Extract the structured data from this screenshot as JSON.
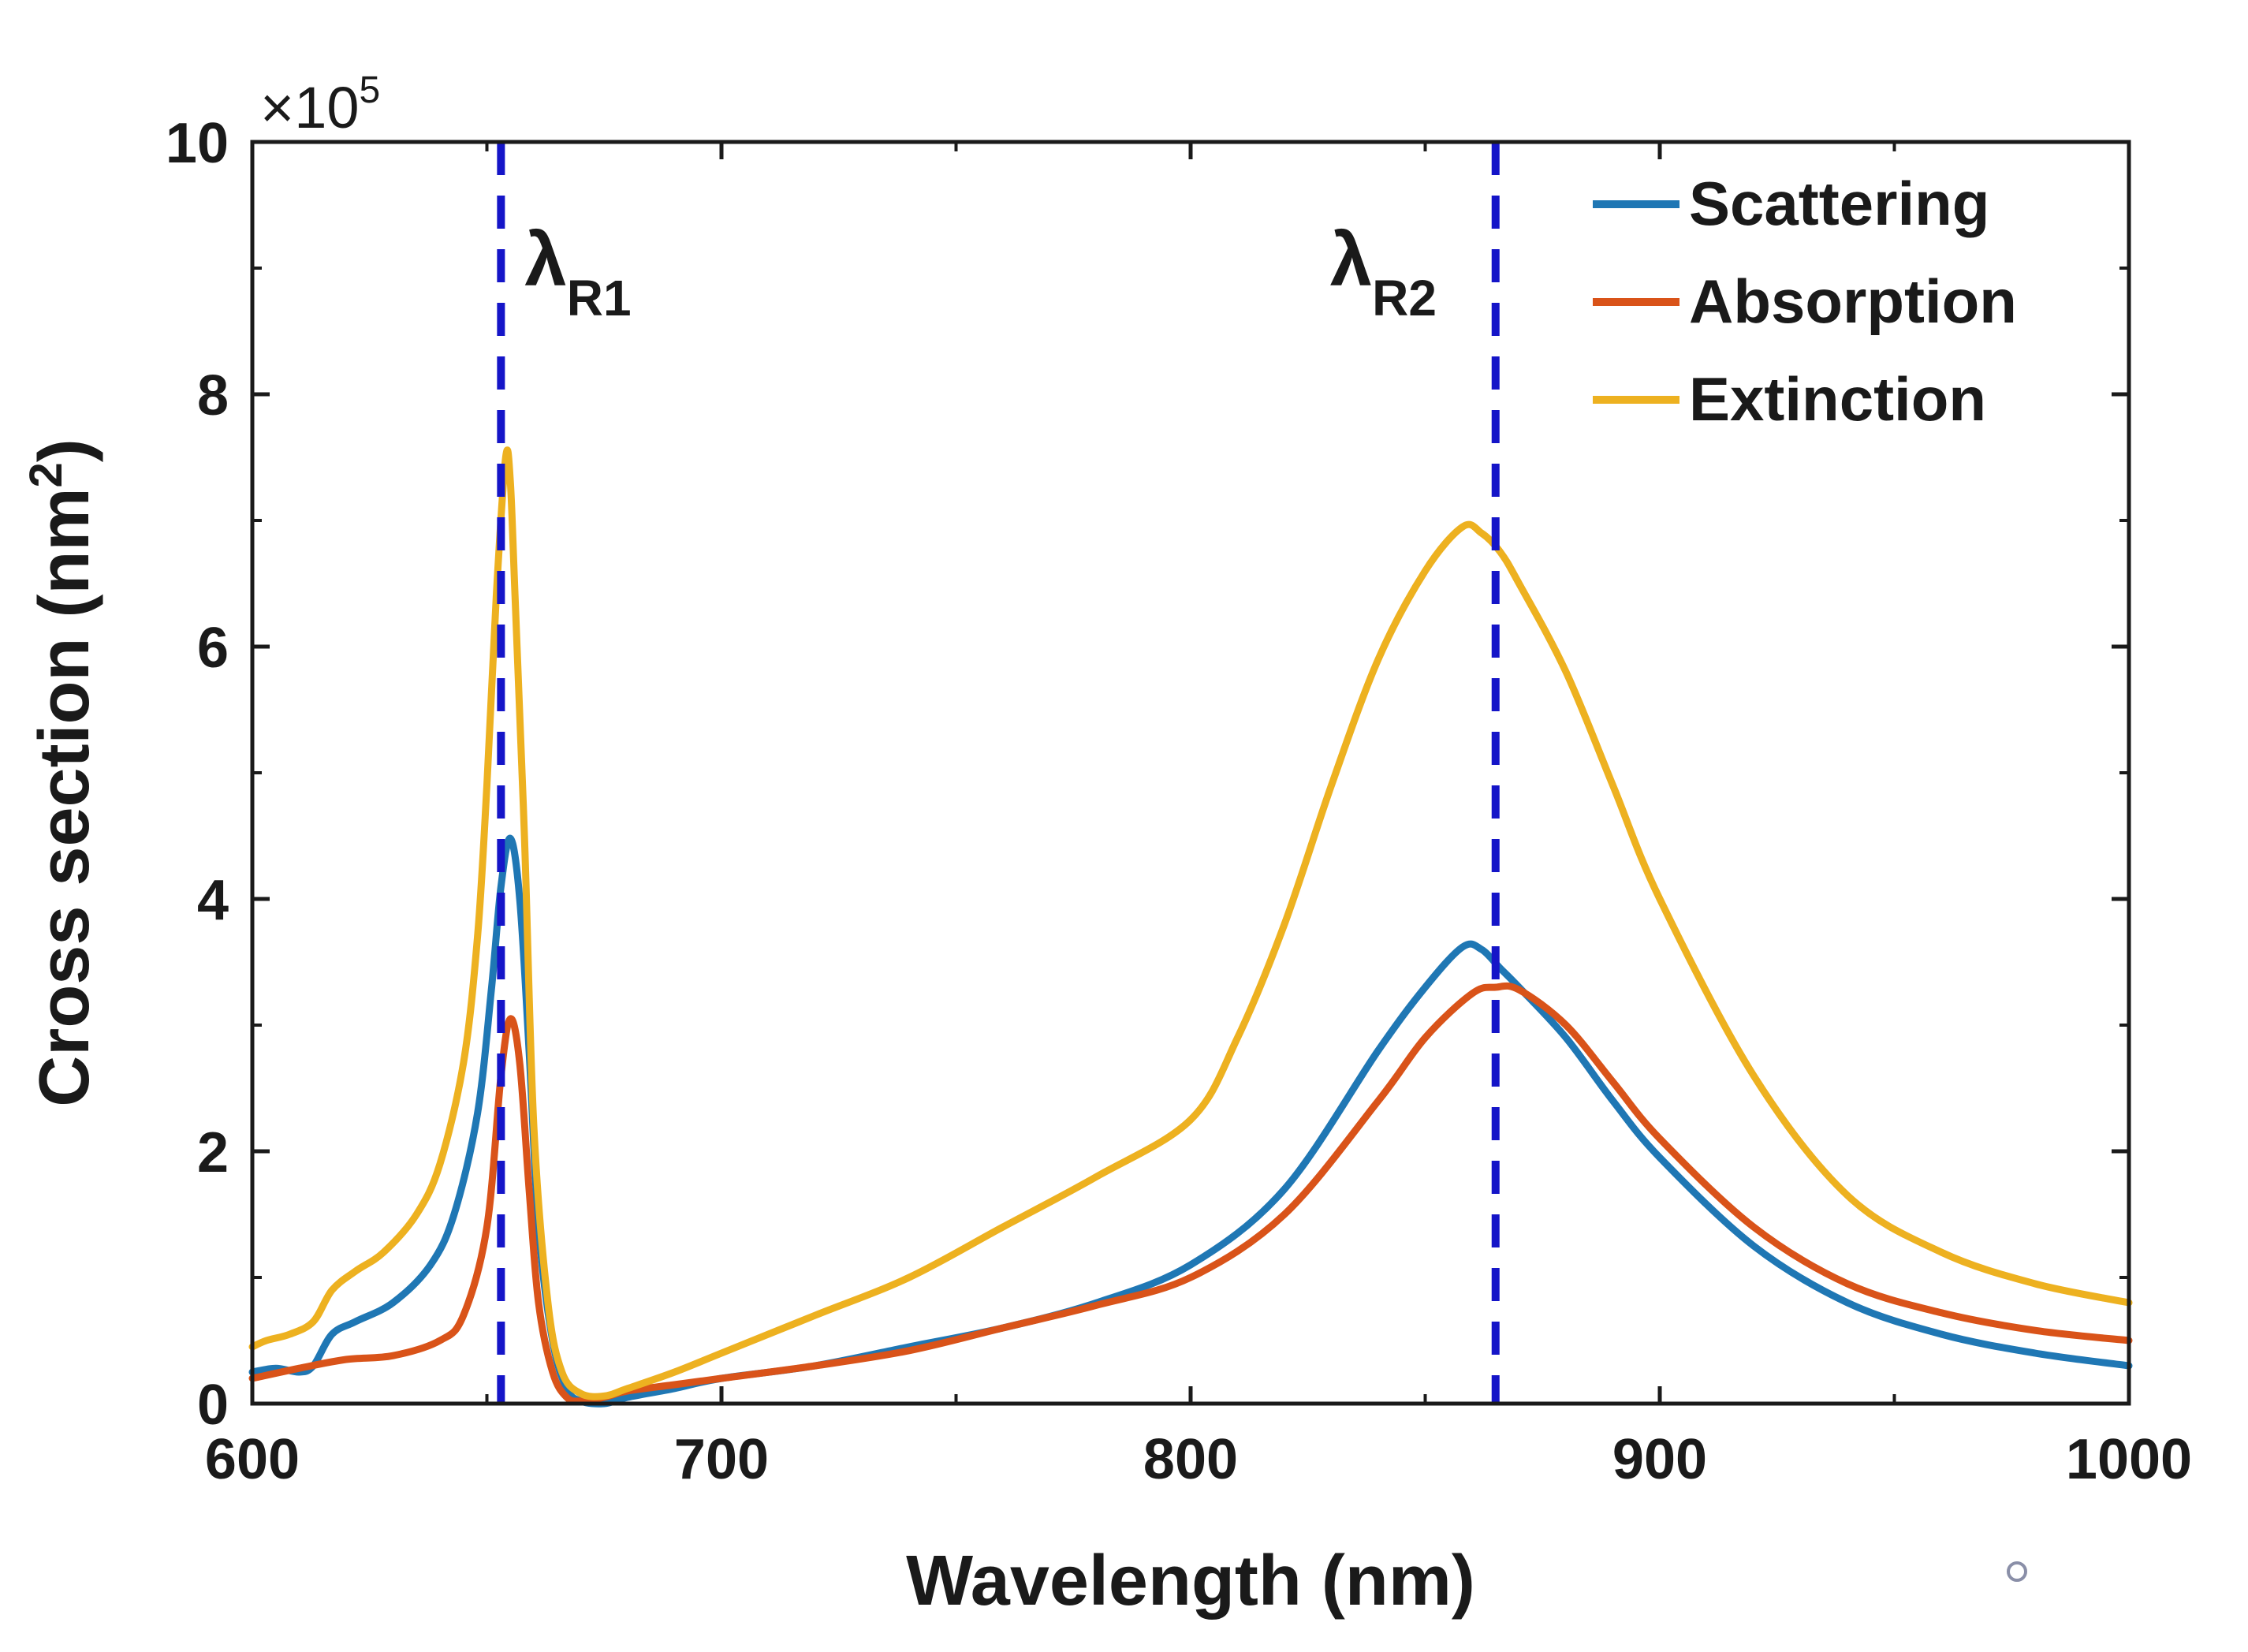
{
  "chart_data": {
    "type": "line",
    "xlabel": "Wavelength (nm)",
    "ylabel_main": "Cross section (nm",
    "ylabel_sup": "2",
    "ylabel_close": ")",
    "exponent_prefix": "×10",
    "exponent_power": "5",
    "xlim": [
      600,
      1000
    ],
    "ylim": [
      0,
      10
    ],
    "y_scale_factor": 100000,
    "x_ticks": [
      600,
      700,
      800,
      900,
      1000
    ],
    "y_ticks": [
      0,
      2,
      4,
      6,
      8,
      10
    ],
    "x_tick_labels": [
      "600",
      "700",
      "800",
      "900",
      "1000"
    ],
    "y_tick_labels": [
      "0",
      "2",
      "4",
      "6",
      "8",
      "10"
    ],
    "grid": false,
    "legend_position": "top-right",
    "markers": [
      {
        "symbol": "λ",
        "subscript": "R1",
        "x": 653,
        "color": "#1515c8"
      },
      {
        "symbol": "λ",
        "subscript": "R2",
        "x": 865,
        "color": "#1515c8"
      }
    ],
    "series": [
      {
        "name": "Scattering",
        "color": "#1f77b4",
        "x": [
          600,
          605,
          610,
          613,
          617,
          622,
          630,
          638,
          643,
          648,
          651,
          653,
          655,
          657,
          659,
          661,
          664,
          667,
          670,
          675,
          680,
          690,
          700,
          720,
          740,
          760,
          780,
          800,
          820,
          840,
          850,
          858,
          862,
          866,
          870,
          880,
          890,
          900,
          920,
          940,
          960,
          980,
          1000
        ],
        "y": [
          0.25,
          0.28,
          0.25,
          0.3,
          0.55,
          0.65,
          0.8,
          1.1,
          1.5,
          2.3,
          3.3,
          4.1,
          4.48,
          4.0,
          2.8,
          1.4,
          0.5,
          0.12,
          0.02,
          0.0,
          0.05,
          0.12,
          0.2,
          0.3,
          0.45,
          0.6,
          0.8,
          1.1,
          1.7,
          2.8,
          3.3,
          3.62,
          3.6,
          3.45,
          3.3,
          2.9,
          2.4,
          1.95,
          1.25,
          0.8,
          0.55,
          0.4,
          0.3
        ]
      },
      {
        "name": "Absorption",
        "color": "#d95319",
        "x": [
          600,
          610,
          620,
          630,
          640,
          645,
          650,
          653,
          655,
          657,
          659,
          661,
          664,
          667,
          670,
          675,
          680,
          690,
          700,
          720,
          740,
          760,
          780,
          800,
          820,
          840,
          850,
          860,
          865,
          870,
          880,
          890,
          900,
          920,
          940,
          960,
          980,
          1000
        ],
        "y": [
          0.2,
          0.28,
          0.35,
          0.38,
          0.5,
          0.7,
          1.4,
          2.6,
          3.05,
          2.7,
          1.7,
          0.8,
          0.25,
          0.05,
          0.02,
          0.05,
          0.1,
          0.15,
          0.2,
          0.3,
          0.42,
          0.6,
          0.78,
          1.0,
          1.5,
          2.4,
          2.9,
          3.25,
          3.3,
          3.28,
          3.0,
          2.55,
          2.1,
          1.4,
          0.95,
          0.72,
          0.58,
          0.5
        ]
      },
      {
        "name": "Extinction",
        "color": "#edb120",
        "x": [
          600,
          603,
          608,
          613,
          617,
          622,
          628,
          635,
          640,
          645,
          648,
          650,
          652,
          654,
          655,
          656,
          658,
          660,
          663,
          666,
          670,
          675,
          680,
          690,
          700,
          720,
          740,
          760,
          780,
          800,
          810,
          820,
          830,
          840,
          850,
          858,
          862,
          866,
          870,
          880,
          890,
          900,
          920,
          940,
          960,
          980,
          1000
        ],
        "y": [
          0.45,
          0.5,
          0.55,
          0.65,
          0.9,
          1.05,
          1.2,
          1.5,
          1.9,
          2.7,
          3.7,
          4.9,
          6.4,
          7.5,
          7.3,
          6.4,
          4.5,
          2.2,
          0.8,
          0.25,
          0.08,
          0.06,
          0.12,
          0.25,
          0.4,
          0.7,
          1.0,
          1.4,
          1.8,
          2.25,
          2.9,
          3.8,
          4.9,
          5.9,
          6.6,
          6.95,
          6.9,
          6.75,
          6.5,
          5.8,
          4.9,
          4.0,
          2.6,
          1.65,
          1.2,
          0.95,
          0.8
        ]
      }
    ]
  }
}
